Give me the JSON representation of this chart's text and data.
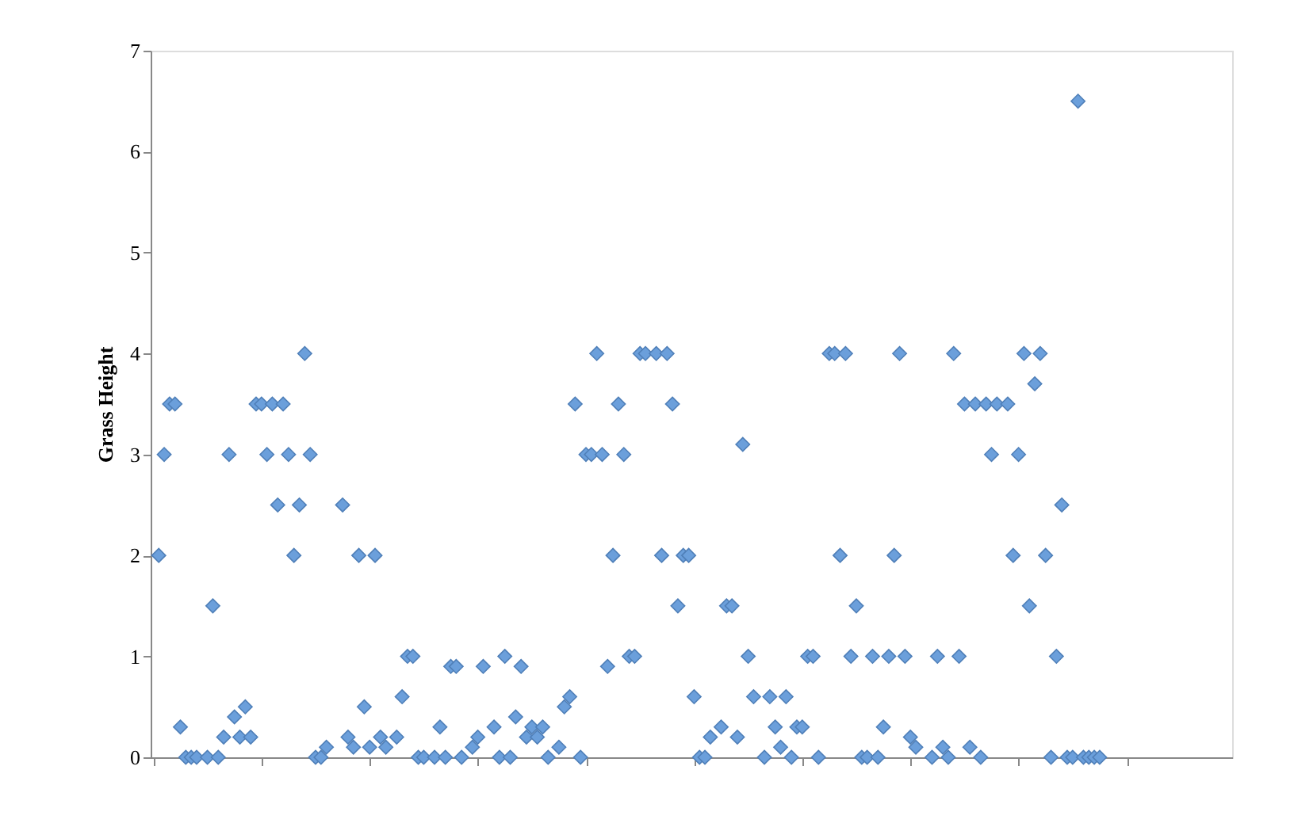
{
  "chart_data": {
    "type": "scatter",
    "ylabel": "Grass Height",
    "categories": [
      null,
      null,
      null,
      null,
      null,
      null,
      null,
      null,
      null,
      null,
      null,
      null,
      null,
      null,
      null,
      null,
      null,
      null,
      null,
      null,
      null,
      null,
      null,
      null,
      null,
      null,
      null,
      null,
      null,
      null,
      null,
      null,
      null,
      null,
      null,
      null,
      null,
      null,
      null,
      null,
      null,
      null,
      null,
      null,
      null,
      null,
      null,
      null,
      null,
      null,
      null,
      null,
      null,
      null,
      null,
      null,
      null,
      null,
      null,
      null,
      null,
      null,
      null,
      null,
      null,
      null,
      null,
      null,
      null,
      null,
      null,
      null,
      null,
      null,
      null,
      null,
      null,
      null,
      null,
      null,
      null,
      null,
      null,
      null,
      null,
      null,
      null,
      null,
      null,
      null,
      null,
      null,
      null,
      null,
      null,
      null,
      null,
      null,
      null,
      null,
      null,
      null,
      null,
      null,
      null,
      null,
      null,
      null,
      null,
      null,
      null,
      null,
      null,
      null,
      null,
      null,
      null,
      null,
      null,
      null,
      null,
      null,
      null,
      null,
      null,
      null,
      null,
      null,
      null,
      null,
      null,
      null,
      null,
      null,
      null,
      null,
      null,
      null,
      null,
      null,
      null,
      null,
      null,
      null,
      null,
      null,
      null,
      null,
      null,
      null,
      null,
      null,
      null,
      null,
      null,
      null,
      null,
      null,
      null,
      null,
      null,
      null,
      null,
      null,
      null,
      null,
      null,
      null,
      null,
      null,
      null,
      null,
      null,
      null,
      null,
      null,
      null,
      null,
      null,
      null,
      null,
      null,
      null,
      null,
      null,
      null,
      null,
      null,
      null,
      null,
      null,
      null,
      null,
      null,
      null,
      null,
      null,
      null,
      null,
      null
    ],
    "ylim": [
      0,
      7
    ],
    "yticks": [
      0,
      1,
      2,
      3,
      4,
      5,
      6,
      7
    ],
    "grid": false,
    "legend": false,
    "marker": "diamond",
    "series": [
      {
        "color": "#6b9fdb",
        "values": [
          null,
          2,
          3,
          3.5,
          3.5,
          0.3,
          0,
          0,
          0,
          null,
          0,
          1.5,
          0,
          0.2,
          3,
          0.4,
          0.2,
          0.5,
          0.2,
          3.5,
          3.5,
          3,
          3.5,
          2.5,
          3.5,
          3,
          2,
          2.5,
          4,
          3,
          0,
          0,
          0.1,
          null,
          null,
          2.5,
          0.2,
          0.1,
          2,
          0.5,
          0.1,
          2,
          0.2,
          0.1,
          null,
          0.2,
          0.6,
          1,
          1,
          0,
          0,
          null,
          0,
          0.3,
          0,
          0.9,
          0.9,
          0,
          null,
          0.1,
          0.2,
          0.9,
          null,
          0.3,
          0,
          1,
          0,
          0.4,
          0.9,
          0.2,
          0.3,
          0.2,
          0.3,
          0,
          null,
          0.1,
          0.5,
          0.6,
          3.5,
          0,
          3,
          3,
          4,
          3,
          0.9,
          2,
          3.5,
          3,
          1,
          1,
          4,
          4,
          null,
          4,
          2,
          4,
          3.5,
          1.5,
          2,
          2,
          0.6,
          0,
          0,
          0.2,
          null,
          0.3,
          1.5,
          1.5,
          0.2,
          3.1,
          1,
          0.6,
          null,
          0,
          0.6,
          0.3,
          0.1,
          0.6,
          0,
          0.3,
          0.3,
          1,
          1,
          0,
          null,
          4,
          4,
          2,
          4,
          1,
          1.5,
          0,
          0,
          1,
          0,
          0.3,
          1,
          2,
          4,
          1,
          0.2,
          0.1,
          null,
          null,
          0,
          1,
          0.1,
          0,
          4,
          1,
          3.5,
          0.1,
          3.5,
          0,
          3.5,
          3,
          3.5,
          null,
          3.5,
          2,
          3,
          4,
          1.5,
          3.7,
          4,
          2,
          0,
          1,
          2.5,
          0,
          0,
          6.5,
          0,
          0,
          0,
          0,
          null,
          null,
          null,
          null,
          null,
          null,
          null,
          null,
          null,
          null,
          null,
          null,
          null,
          null,
          null,
          null,
          null,
          null,
          null,
          null,
          null,
          null,
          null,
          null
        ]
      }
    ]
  }
}
